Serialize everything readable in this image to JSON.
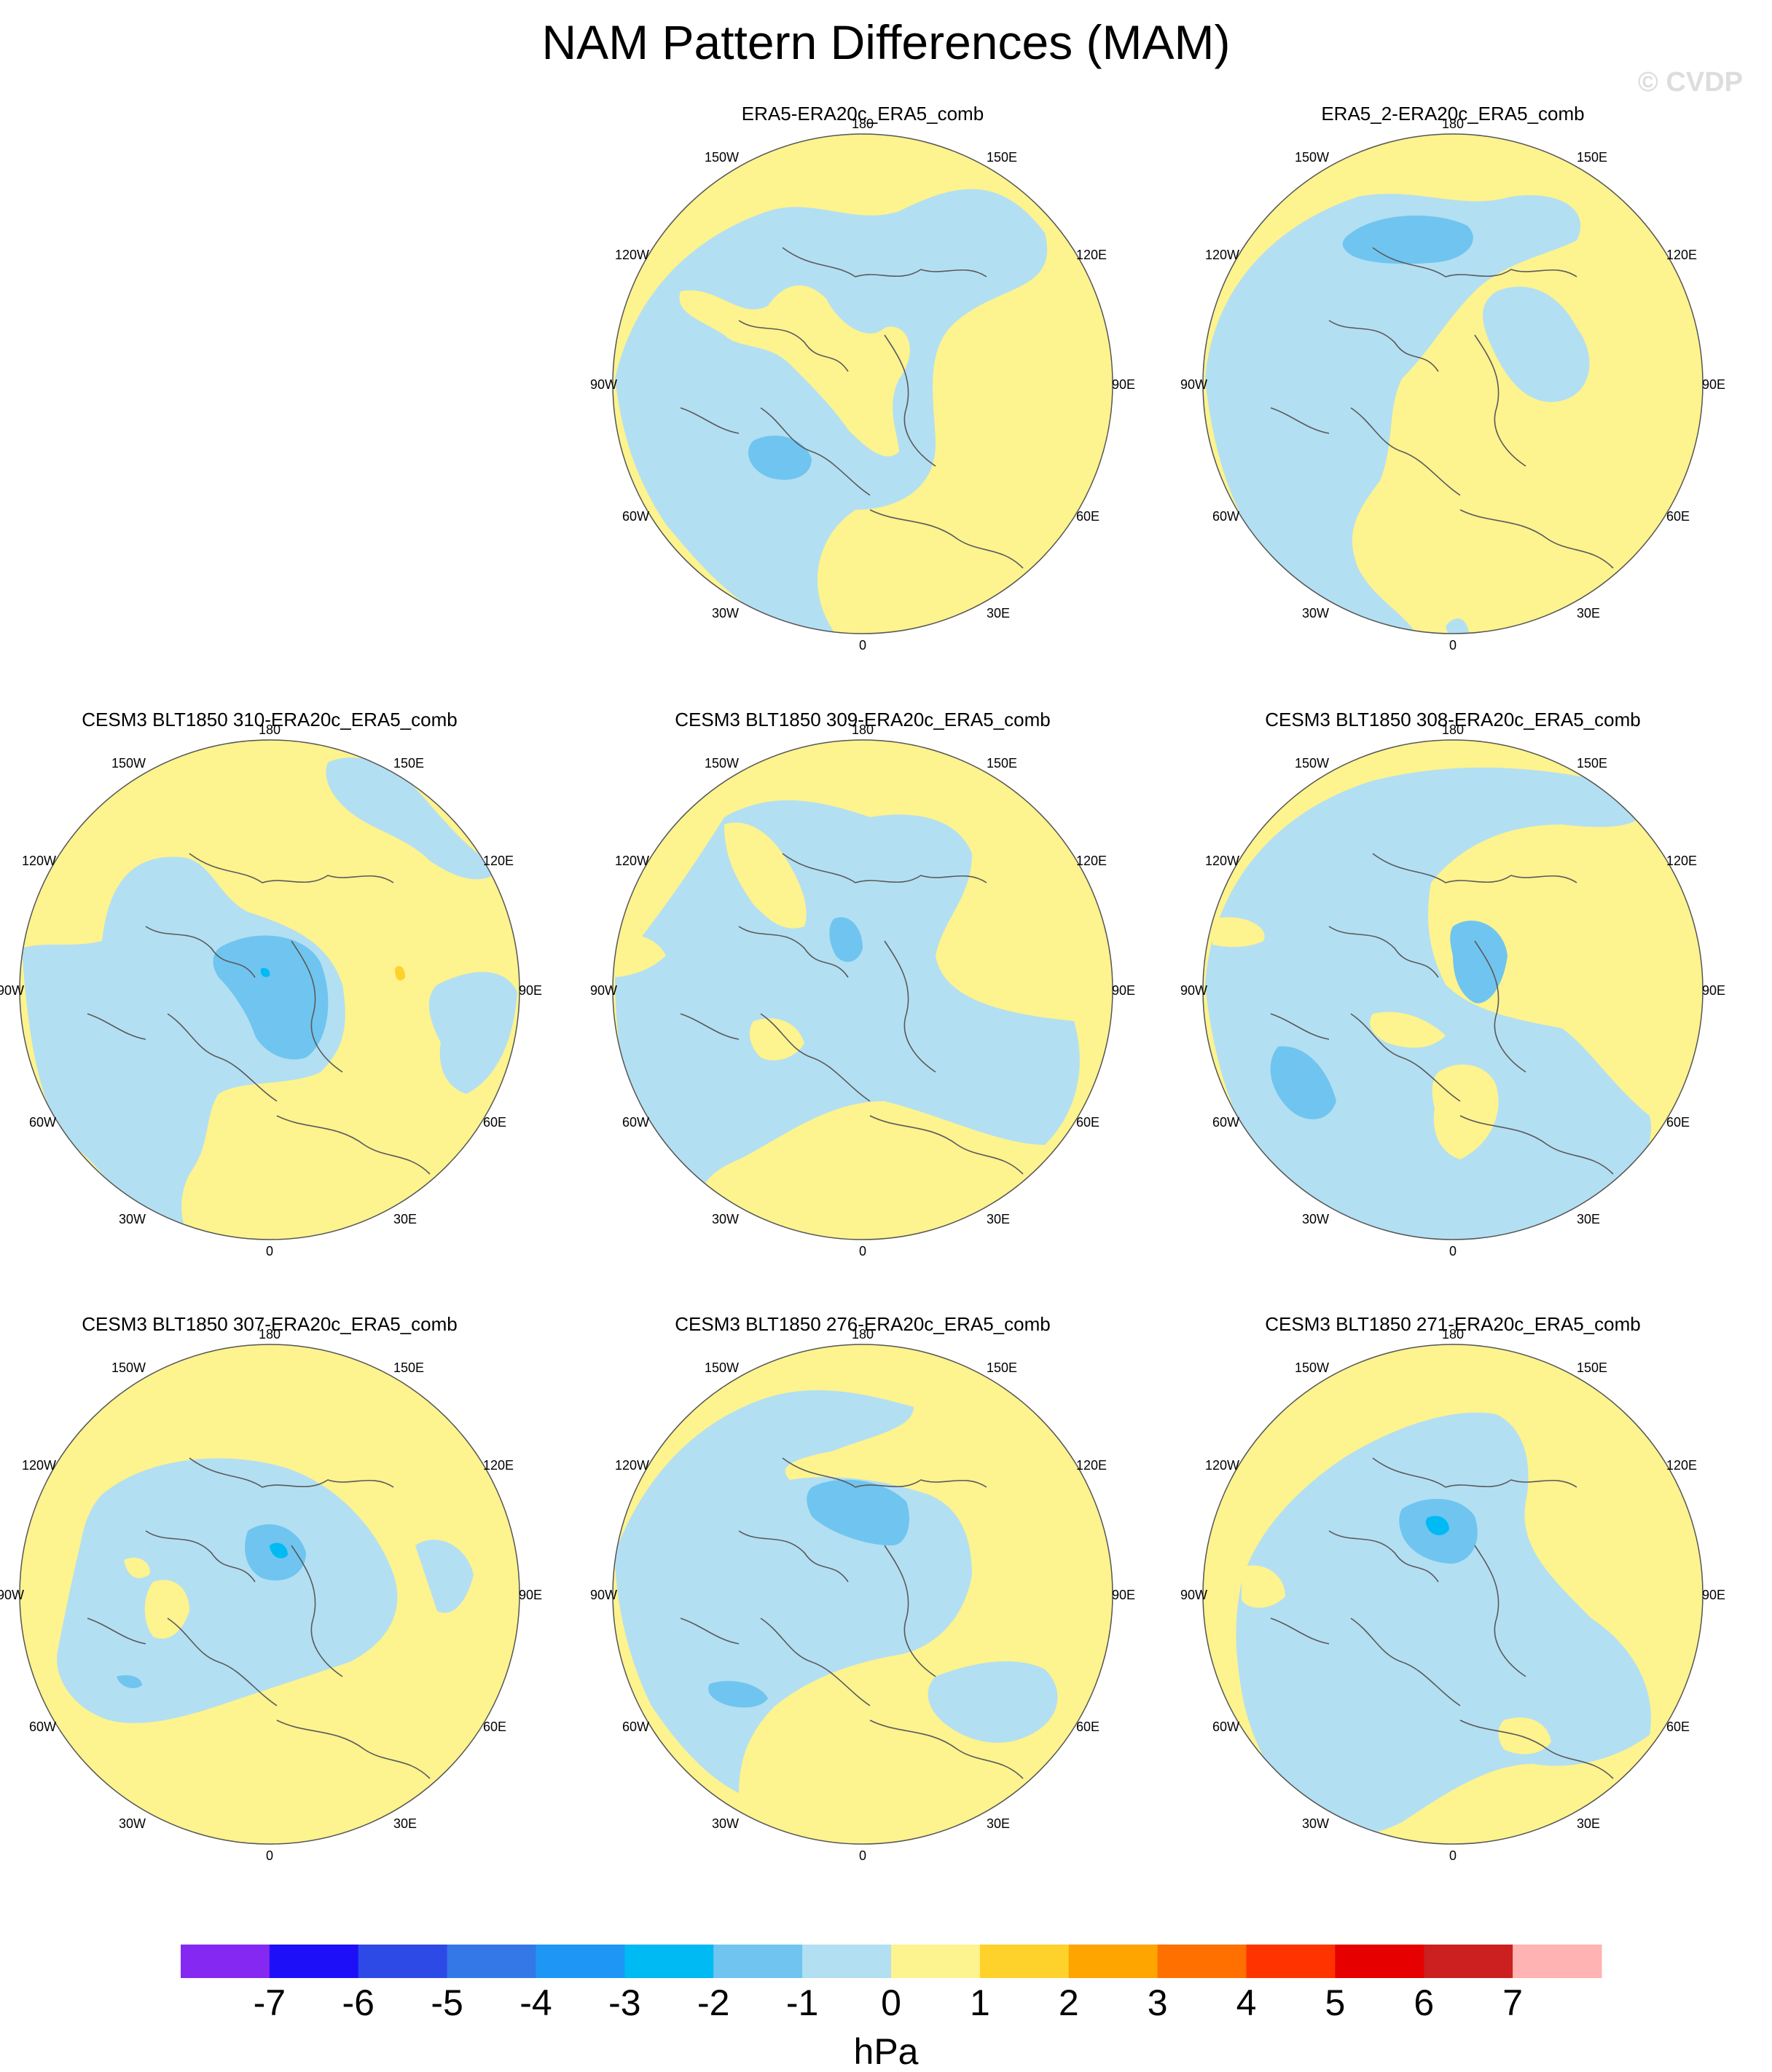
{
  "title": "NAM Pattern Differences (MAM)",
  "watermark": "© CVDP",
  "colors": {
    "zero_pos": "#fdf38f",
    "zero_neg": "#b3dff2",
    "neg_1_2": "#6fc5ef",
    "neg_2_3": "#00baf4",
    "pos_1_2": "#ffd12b",
    "coast": "#5a5a5a",
    "border": "#555555"
  },
  "lon_labels": {
    "top": "180",
    "bottom": "0",
    "left": "90W",
    "right": "90E",
    "tl1": "150W",
    "tl2": "120W",
    "tr1": "150E",
    "tr2": "120E",
    "bl1": "60W",
    "bl2": "30W",
    "br1": "60E",
    "br2": "30E"
  },
  "panels": [
    {
      "title": "ERA5-ERA20c_ERA5_comb"
    },
    {
      "title": "ERA5_2-ERA20c_ERA5_comb"
    },
    {
      "title": "CESM3 BLT1850 310-ERA20c_ERA5_comb"
    },
    {
      "title": "CESM3 BLT1850 309-ERA20c_ERA5_comb"
    },
    {
      "title": "CESM3 BLT1850 308-ERA20c_ERA5_comb"
    },
    {
      "title": "CESM3 BLT1850 307-ERA20c_ERA5_comb"
    },
    {
      "title": "CESM3 BLT1850 276-ERA20c_ERA5_comb"
    },
    {
      "title": "CESM3 BLT1850 271-ERA20c_ERA5_comb"
    }
  ],
  "colorbar": {
    "levels": [
      "-7",
      "-6",
      "-5",
      "-4",
      "-3",
      "-2",
      "-1",
      "0",
      "1",
      "2",
      "3",
      "4",
      "5",
      "6",
      "7"
    ],
    "colors": [
      "#8528f2",
      "#1e0ff9",
      "#2e4ae6",
      "#3478e8",
      "#1e96f5",
      "#00baf4",
      "#6fc5ef",
      "#b3dff2",
      "#fdf38f",
      "#ffd12b",
      "#fea500",
      "#ff7000",
      "#ff3300",
      "#e60000",
      "#cc1f1f",
      "#ffb3b3"
    ],
    "units": "hPa"
  }
}
